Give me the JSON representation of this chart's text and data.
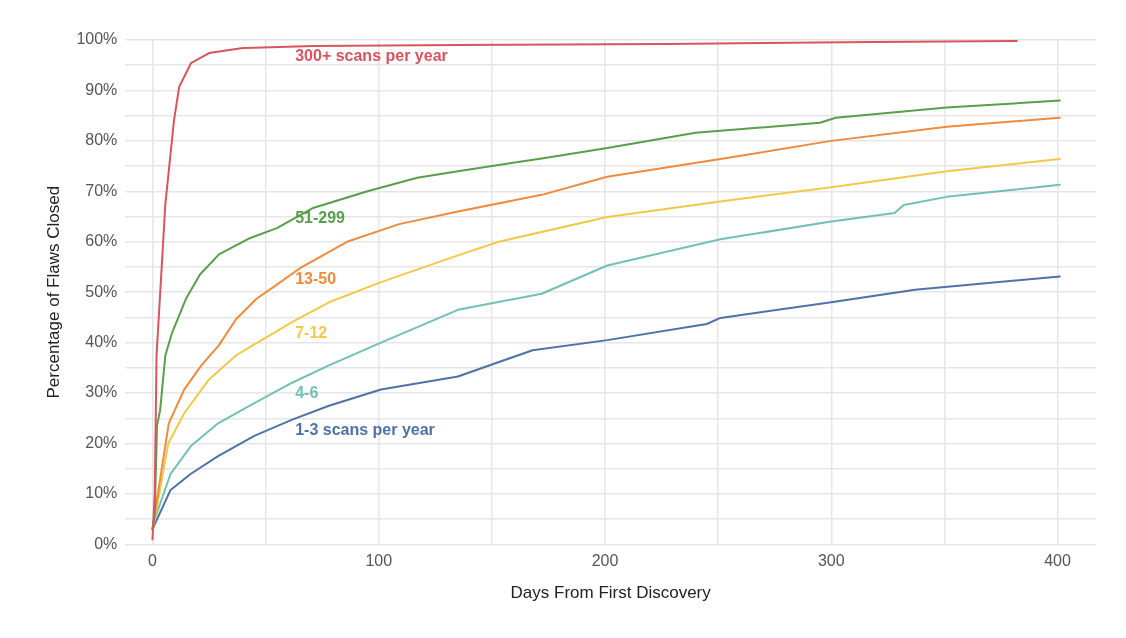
{
  "chart_data": {
    "type": "line",
    "xlabel": "Days From First Discovery",
    "ylabel": "Percentage of Flaws Closed",
    "xlim": [
      -12,
      417
    ],
    "ylim": [
      0,
      100
    ],
    "xticks": [
      0,
      {
        "value": 50,
        "label": null
      },
      100,
      {
        "value": 150,
        "label": null
      },
      200,
      {
        "value": 250,
        "label": null
      },
      300,
      {
        "value": 350,
        "label": null
      },
      400
    ],
    "yticks": [
      {
        "value": 0,
        "label": "0%"
      },
      {
        "value": 5,
        "label": null
      },
      {
        "value": 10,
        "label": "10%"
      },
      {
        "value": 15,
        "label": null
      },
      {
        "value": 20,
        "label": "20%"
      },
      {
        "value": 25,
        "label": null
      },
      {
        "value": 30,
        "label": "30%"
      },
      {
        "value": 35,
        "label": null
      },
      {
        "value": 40,
        "label": "40%"
      },
      {
        "value": 45,
        "label": null
      },
      {
        "value": 50,
        "label": "50%"
      },
      {
        "value": 55,
        "label": null
      },
      {
        "value": 60,
        "label": "60%"
      },
      {
        "value": 65,
        "label": null
      },
      {
        "value": 70,
        "label": "70%"
      },
      {
        "value": 75,
        "label": null
      },
      {
        "value": 80,
        "label": "80%"
      },
      {
        "value": 85,
        "label": null
      },
      {
        "value": 90,
        "label": "90%"
      },
      {
        "value": 95,
        "label": null
      },
      {
        "value": 100,
        "label": "100%"
      }
    ],
    "grid": true,
    "legend": false,
    "marker": "none",
    "line_style": "solid",
    "series": [
      {
        "name": "300+ scans per year",
        "color": "#d9545c",
        "x": [
          0,
          1,
          1.8,
          5.7,
          9.5,
          11.8,
          17,
          25,
          40,
          71,
          135,
          227,
          319,
          382
        ],
        "values": [
          1,
          10,
          37.5,
          67.5,
          84,
          90.7,
          95.4,
          97.4,
          98.4,
          98.8,
          99,
          99.2,
          99.6,
          99.8
        ]
      },
      {
        "name": "51-299",
        "color": "#5a9e4b",
        "x": [
          0,
          1,
          2,
          3.4,
          5.7,
          8.7,
          14.8,
          21,
          29.4,
          43,
          55,
          71,
          95,
          117,
          135,
          172,
          201,
          240,
          295,
          302,
          351,
          401
        ],
        "values": [
          3,
          6,
          23.5,
          26.7,
          37.5,
          42,
          48.7,
          53.5,
          57.5,
          60.7,
          62.7,
          66.7,
          70,
          72.7,
          74,
          76.5,
          78.6,
          81.6,
          83.6,
          84.6,
          86.6,
          88
        ]
      },
      {
        "name": "13-50",
        "color": "#f08a3c",
        "x": [
          0,
          1,
          7.2,
          14,
          21.6,
          29.4,
          37,
          46,
          55,
          65,
          86,
          109,
          135,
          172,
          201,
          251,
          300,
          351,
          401
        ],
        "values": [
          3,
          6,
          24,
          30.7,
          35.5,
          39.5,
          44.7,
          48.7,
          51.5,
          54.7,
          60,
          63.5,
          66,
          69.3,
          72.9,
          76.4,
          80,
          82.8,
          84.6
        ]
      },
      {
        "name": "7-12",
        "color": "#f0c94a",
        "x": [
          0,
          1,
          7,
          14,
          25,
          37,
          49,
          61.5,
          78,
          101,
          135,
          153,
          201,
          251,
          300,
          351,
          401
        ],
        "values": [
          3,
          5,
          20,
          26,
          32.7,
          37.5,
          40.7,
          44,
          48,
          52,
          57.3,
          60,
          64.9,
          68,
          70.8,
          74,
          76.4
        ]
      },
      {
        "name": "4-6",
        "color": "#73bfb5",
        "x": [
          0,
          1,
          8,
          17,
          29,
          45,
          61.5,
          78,
          101,
          135,
          172,
          201,
          251,
          300,
          328,
          332,
          351,
          401
        ],
        "values": [
          3,
          5,
          14,
          19.5,
          24,
          28,
          32,
          35.5,
          40,
          46.5,
          49.7,
          55.3,
          60.5,
          64,
          65.7,
          67.3,
          68.9,
          71.3
        ]
      },
      {
        "name": "1-3 scans per year",
        "color": "#4f72a6",
        "x": [
          0,
          1,
          8,
          17,
          29,
          45,
          61.5,
          78,
          101,
          135,
          168,
          201,
          245,
          251,
          300,
          337,
          401
        ],
        "values": [
          3,
          4,
          10.8,
          14,
          17.5,
          21.5,
          24.7,
          27.5,
          30.7,
          33.3,
          38.5,
          40.5,
          43.7,
          44.9,
          48,
          50.5,
          53.1
        ]
      }
    ]
  }
}
